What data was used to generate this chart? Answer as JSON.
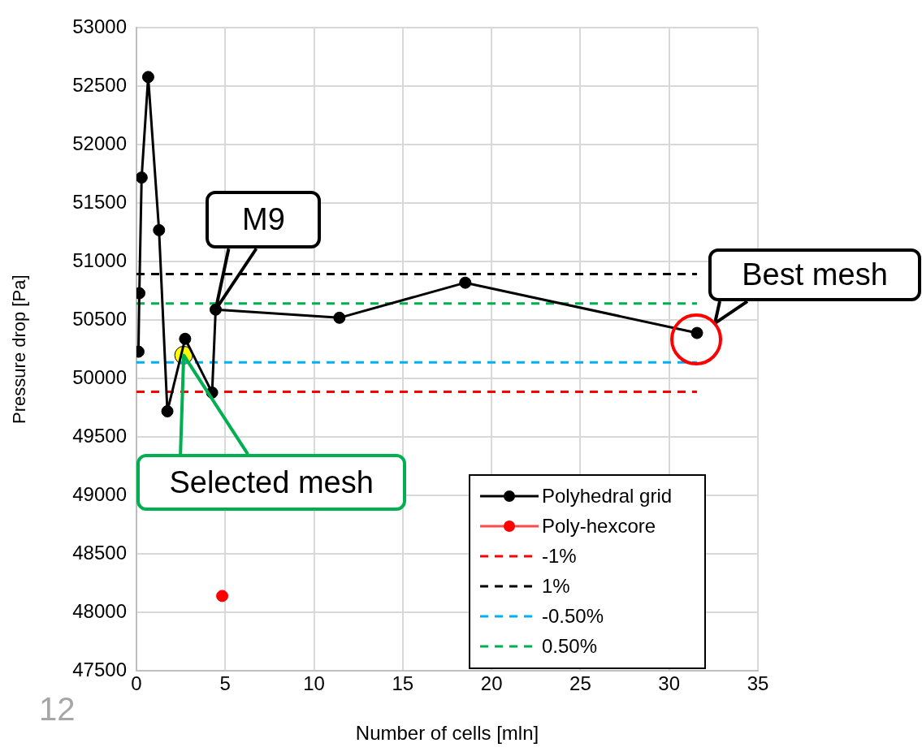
{
  "chart_data": {
    "type": "line",
    "xlabel": "Number of cells [mln]",
    "ylabel": "Pressure drop [Pa]",
    "xlim": [
      0,
      35
    ],
    "xticks": [
      0,
      5,
      10,
      15,
      20,
      25,
      30,
      35
    ],
    "ylim": [
      47500,
      53000
    ],
    "yticks": [
      47500,
      48000,
      48500,
      49000,
      49500,
      50000,
      50500,
      51000,
      51500,
      52000,
      52500,
      53000
    ],
    "grid": true,
    "legend": "bottom right",
    "series": [
      {
        "name": "Polyhedral grid",
        "type": "line",
        "color": "#000000",
        "marker": "circle",
        "x": [
          0.11,
          0.16,
          0.29,
          0.66,
          1.27,
          1.74,
          2.74,
          4.26,
          4.46,
          11.43,
          18.52,
          31.57
        ],
        "values": [
          50230,
          50730,
          51720,
          52580,
          51270,
          49720,
          50340,
          49880,
          50590,
          50520,
          50820,
          50390
        ]
      },
      {
        "name": "Poly-hexcore",
        "type": "scatter",
        "color": "#ff0000",
        "marker": "circle",
        "x": [
          4.83
        ],
        "values": [
          48140
        ]
      },
      {
        "name": "-1%",
        "type": "line",
        "color": "#ff0000",
        "marker": "none",
        "line_style": "dashed",
        "x": [
          0,
          31.57
        ],
        "values": [
          49886,
          49886
        ]
      },
      {
        "name": "1%",
        "type": "line",
        "color": "#000000",
        "marker": "none",
        "line_style": "dashed",
        "x": [
          0,
          31.57
        ],
        "values": [
          50894,
          50894
        ]
      },
      {
        "name": "-0.50%",
        "type": "line",
        "color": "#00b0f0",
        "marker": "none",
        "line_style": "dashed",
        "x": [
          0,
          31.57
        ],
        "values": [
          50138,
          50138
        ]
      },
      {
        "name": "0.50%",
        "type": "line",
        "color": "#00b050",
        "marker": "none",
        "line_style": "dashed",
        "x": [
          0,
          31.57
        ],
        "values": [
          50642,
          50642
        ]
      },
      {
        "type": "scatter",
        "color": "#ffff00",
        "marker": "circle",
        "x": [
          2.66
        ],
        "values": [
          50200
        ]
      }
    ],
    "annotations": [
      {
        "text": "M9",
        "x": 4.46,
        "y": 50590
      },
      {
        "text": "Best mesh",
        "x": 31.57,
        "y": 50390
      },
      "Selected mesh",
      "12"
    ]
  }
}
